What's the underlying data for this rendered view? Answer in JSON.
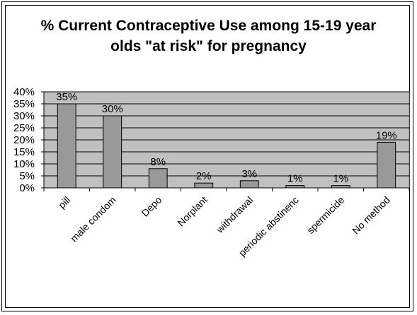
{
  "chart_data": {
    "type": "bar",
    "title_line1": "% Current Contraceptive Use among 15-19 year",
    "title_line2": "olds \"at risk\" for pregnancy",
    "categories": [
      "pill",
      "male condom",
      "Depo",
      "Norplant",
      "withdrawal",
      "periodic abstinence",
      "spermicide",
      "No method"
    ],
    "category_labels_shown": [
      "pill",
      "male condom",
      "Depo",
      "Norplant",
      "withdrawal",
      "periodic abstinenc",
      "spermicide",
      "No method"
    ],
    "values": [
      35,
      30,
      8,
      2,
      3,
      1,
      1,
      19
    ],
    "data_labels": [
      "35%",
      "30%",
      "8%",
      "2%",
      "3%",
      "1%",
      "1%",
      "19%"
    ],
    "ylim": [
      0,
      40
    ],
    "yticks": [
      0,
      5,
      10,
      15,
      20,
      25,
      30,
      35,
      40
    ],
    "ytick_labels": [
      "0%",
      "5%",
      "10%",
      "15%",
      "20%",
      "25%",
      "30%",
      "35%",
      "40%"
    ],
    "grid": true,
    "legend": "none",
    "colors": {
      "plot_bg": "#c0c0c0",
      "bar": "#999999",
      "bar_stroke": "#000000"
    }
  }
}
